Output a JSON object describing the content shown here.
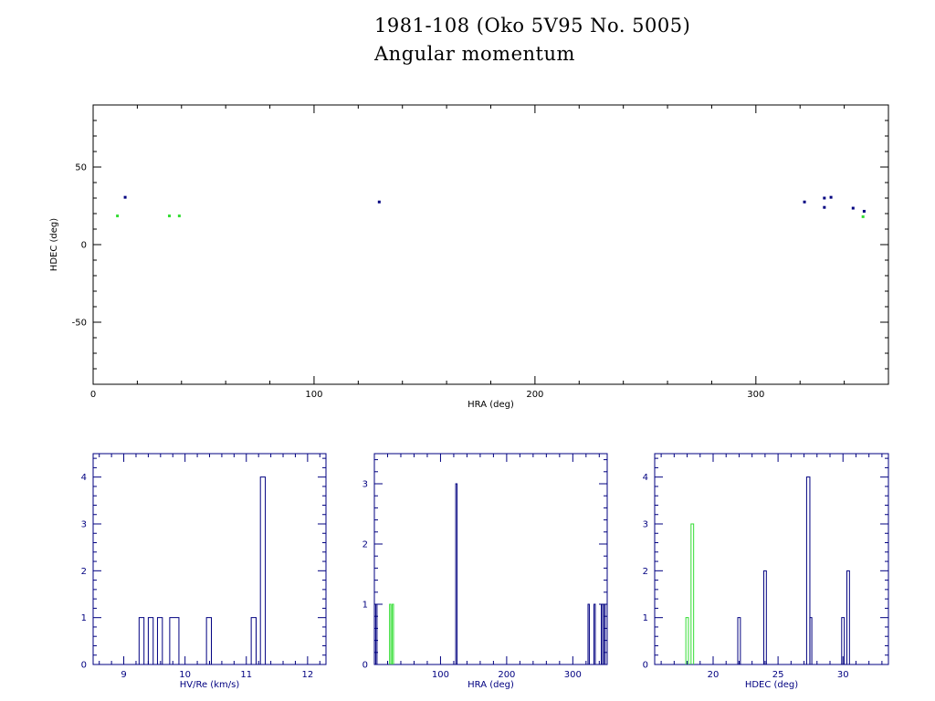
{
  "header": {
    "title": "1981-108 (Oko 5V95 No. 5005)",
    "subtitle": "Angular momentum"
  },
  "colors": {
    "primary_series": "#000080",
    "secondary_series": "#33dd33",
    "axes": "#000000",
    "histogram_axes": "#000080"
  },
  "chart_data": [
    {
      "type": "scatter",
      "title": "",
      "xlabel": "HRA (deg)",
      "ylabel": "HDEC (deg)",
      "xlim": [
        0,
        360
      ],
      "ylim": [
        -90,
        90
      ],
      "xticks": [
        0,
        100,
        200,
        300
      ],
      "yticks": [
        -50,
        0,
        50
      ],
      "grid": false,
      "series": [
        {
          "color": "#000080",
          "points": [
            [
              14.5,
              30.5
            ],
            [
              129.5,
              27.5
            ],
            [
              322,
              27.5
            ],
            [
              331,
              30
            ],
            [
              331,
              24
            ],
            [
              334,
              30.5
            ],
            [
              344,
              23.5
            ],
            [
              349,
              21.5
            ]
          ]
        },
        {
          "color": "#33dd33",
          "points": [
            [
              11,
              18.5
            ],
            [
              34.5,
              18.5
            ],
            [
              39,
              18.5
            ],
            [
              348.5,
              18
            ]
          ]
        }
      ]
    },
    {
      "type": "bar",
      "title": "",
      "xlabel": "HV/Re (km/s)",
      "ylabel": "",
      "xlim": [
        8.5,
        12.3
      ],
      "ylim": [
        0,
        4.5
      ],
      "xticks": [
        9,
        10,
        11,
        12
      ],
      "yticks": [
        0,
        1,
        2,
        3,
        4
      ],
      "series": [
        {
          "color": "#000080",
          "bins": [
            [
              9.25,
              9.33,
              1
            ],
            [
              9.4,
              9.48,
              1
            ],
            [
              9.55,
              9.63,
              1
            ],
            [
              9.75,
              9.9,
              1
            ],
            [
              10.35,
              10.43,
              1
            ],
            [
              11.08,
              11.16,
              1
            ],
            [
              11.23,
              11.31,
              4
            ]
          ]
        }
      ]
    },
    {
      "type": "bar",
      "title": "",
      "xlabel": "HRA (deg)",
      "ylabel": "",
      "xlim": [
        0,
        352
      ],
      "ylim": [
        0,
        3.5
      ],
      "xticks": [
        100,
        200,
        300
      ],
      "yticks": [
        0,
        1,
        2,
        3
      ],
      "series": [
        {
          "color": "#000080",
          "bins": [
            [
              2,
              4,
              1
            ],
            [
              123,
              125,
              3
            ],
            [
              323,
              325,
              1
            ],
            [
              332,
              334,
              1
            ],
            [
              343,
              345,
              1
            ],
            [
              347,
              349,
              1
            ]
          ]
        },
        {
          "color": "#33dd33",
          "bins": [
            [
              23,
              25,
              1
            ],
            [
              27,
              29,
              1
            ]
          ]
        }
      ]
    },
    {
      "type": "bar",
      "title": "",
      "xlabel": "HDEC (deg)",
      "ylabel": "",
      "xlim": [
        15.5,
        33.5
      ],
      "ylim": [
        0,
        4.5
      ],
      "xticks": [
        20,
        25,
        30
      ],
      "yticks": [
        0,
        1,
        2,
        3,
        4
      ],
      "series": [
        {
          "color": "#000080",
          "bins": [
            [
              21.9,
              22.1,
              1
            ],
            [
              23.9,
              24.1,
              2
            ],
            [
              27.2,
              27.45,
              4
            ],
            [
              27.45,
              27.6,
              1
            ],
            [
              29.9,
              30.1,
              1
            ],
            [
              30.3,
              30.5,
              2
            ]
          ]
        },
        {
          "color": "#33dd33",
          "bins": [
            [
              17.9,
              18.1,
              1
            ],
            [
              18.3,
              18.5,
              3
            ]
          ]
        }
      ]
    }
  ]
}
